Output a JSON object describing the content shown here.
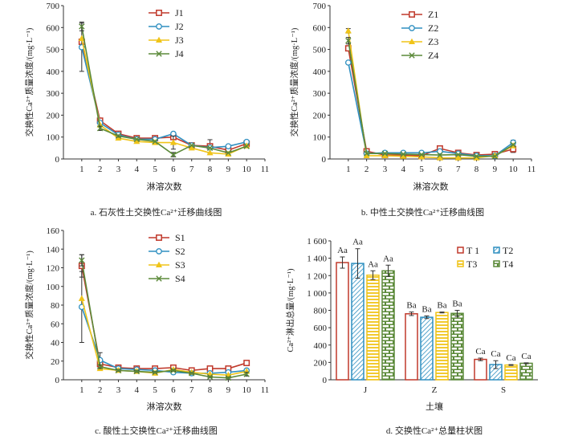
{
  "chart_data": [
    {
      "id": "a",
      "type": "line",
      "caption": "a. 石灰性土交换性Ca²⁺迁移曲线图",
      "xlabel": "淋溶次数",
      "ylabel": "交换性Ca²⁺质量浓度/(mg·L⁻¹)",
      "x": [
        1,
        2,
        3,
        4,
        5,
        6,
        7,
        8,
        9,
        10
      ],
      "xticks": [
        "1",
        "2",
        "3",
        "4",
        "5",
        "6",
        "7",
        "8",
        "9",
        "10",
        "11"
      ],
      "xlim": [
        0,
        11
      ],
      "ylim": [
        0,
        700
      ],
      "yticks": [
        "0",
        "100",
        "200",
        "300",
        "400",
        "500",
        "600",
        "700"
      ],
      "legend_position": "top-right",
      "series": [
        {
          "name": "J1",
          "color": "#c0392b",
          "marker": "square",
          "values": [
            535,
            175,
            115,
            95,
            95,
            100,
            62,
            58,
            40,
            70
          ],
          "err": [
            0,
            10,
            5,
            5,
            5,
            0,
            5,
            30,
            0,
            5
          ]
        },
        {
          "name": "J2",
          "color": "#2e8fc0",
          "marker": "circle",
          "values": [
            510,
            165,
            110,
            90,
            90,
            115,
            62,
            52,
            58,
            78
          ],
          "err": [
            110,
            5,
            5,
            5,
            5,
            5,
            5,
            5,
            5,
            5
          ]
        },
        {
          "name": "J3",
          "color": "#f0c419",
          "marker": "triangle",
          "values": [
            550,
            155,
            95,
            80,
            75,
            75,
            50,
            28,
            22,
            60
          ],
          "err": [
            0,
            0,
            5,
            0,
            0,
            30,
            0,
            0,
            0,
            0
          ]
        },
        {
          "name": "J4",
          "color": "#5c8a3a",
          "marker": "x",
          "values": [
            605,
            140,
            105,
            90,
            80,
            20,
            62,
            50,
            28,
            58
          ],
          "err": [
            20,
            10,
            5,
            0,
            0,
            10,
            0,
            0,
            0,
            0
          ]
        }
      ]
    },
    {
      "id": "b",
      "type": "line",
      "caption": "b. 中性土交换性Ca²⁺迁移曲线图",
      "xlabel": "淋溶次数",
      "ylabel": "交换性Ca²⁺质量浓度/(mg·L⁻¹)",
      "x": [
        1,
        2,
        3,
        4,
        5,
        6,
        7,
        8,
        9,
        10
      ],
      "xticks": [
        "1",
        "2",
        "3",
        "4",
        "5",
        "6",
        "7",
        "8",
        "9",
        "10",
        "11"
      ],
      "xlim": [
        0,
        11
      ],
      "ylim": [
        0,
        700
      ],
      "yticks": [
        "0",
        "100",
        "200",
        "300",
        "400",
        "500",
        "600",
        "700"
      ],
      "legend_position": "top-center",
      "series": [
        {
          "name": "Z1",
          "color": "#c0392b",
          "marker": "square",
          "values": [
            505,
            35,
            18,
            18,
            15,
            48,
            28,
            18,
            22,
            45
          ],
          "err": [
            10,
            5,
            5,
            5,
            5,
            5,
            5,
            5,
            5,
            15
          ]
        },
        {
          "name": "Z2",
          "color": "#2e8fc0",
          "marker": "circle",
          "values": [
            440,
            25,
            28,
            28,
            28,
            35,
            25,
            15,
            15,
            75
          ],
          "err": [
            5,
            5,
            5,
            5,
            5,
            5,
            5,
            5,
            5,
            10
          ]
        },
        {
          "name": "Z3",
          "color": "#f0c419",
          "marker": "triangle",
          "values": [
            585,
            15,
            15,
            12,
            10,
            5,
            5,
            5,
            15,
            60
          ],
          "err": [
            10,
            0,
            0,
            0,
            0,
            0,
            0,
            0,
            0,
            0
          ]
        },
        {
          "name": "Z4",
          "color": "#5c8a3a",
          "marker": "x",
          "values": [
            540,
            25,
            25,
            22,
            20,
            18,
            20,
            12,
            12,
            65
          ],
          "err": [
            15,
            0,
            0,
            0,
            0,
            0,
            0,
            0,
            0,
            0
          ]
        }
      ]
    },
    {
      "id": "c",
      "type": "line",
      "caption": "c. 酸性土交换性Ca²⁺迁移曲线图",
      "xlabel": "淋溶次数",
      "ylabel": "交换性Ca²⁺质量浓度/(mg·L⁻¹)",
      "x": [
        1,
        2,
        3,
        4,
        5,
        6,
        7,
        8,
        9,
        10
      ],
      "xticks": [
        "1",
        "2",
        "3",
        "4",
        "5",
        "6",
        "7",
        "8",
        "9",
        "10",
        "11"
      ],
      "xlim": [
        0,
        11
      ],
      "ylim": [
        0,
        160
      ],
      "yticks": [
        "0",
        "20",
        "40",
        "60",
        "80",
        "100",
        "120",
        "140",
        "160"
      ],
      "legend_position": "top-right",
      "series": [
        {
          "name": "S1",
          "color": "#c0392b",
          "marker": "square",
          "values": [
            122,
            17,
            13,
            12,
            12,
            13,
            10,
            12,
            12,
            18
          ],
          "err": [
            12,
            4,
            1,
            1,
            1,
            2,
            1,
            1,
            1,
            1
          ]
        },
        {
          "name": "S2",
          "color": "#2e8fc0",
          "marker": "circle",
          "values": [
            78,
            21,
            12,
            11,
            10,
            8,
            7,
            7,
            8,
            10
          ],
          "err": [
            38,
            8,
            1,
            1,
            1,
            2,
            1,
            1,
            1,
            1
          ]
        },
        {
          "name": "S3",
          "color": "#f0c419",
          "marker": "triangle",
          "values": [
            87,
            12,
            10,
            9,
            7,
            11,
            8,
            6,
            5,
            9
          ],
          "err": [
            0,
            0,
            0,
            0,
            0,
            0,
            0,
            0,
            0,
            0
          ]
        },
        {
          "name": "S4",
          "color": "#5c8a3a",
          "marker": "x",
          "values": [
            128,
            14,
            10,
            9,
            8,
            10,
            7,
            3,
            2,
            6
          ],
          "err": [
            6,
            2,
            1,
            1,
            1,
            1,
            1,
            1,
            1,
            2
          ]
        }
      ]
    },
    {
      "id": "d",
      "type": "bar",
      "caption": "d. 交换性Ca²⁺总量柱状图",
      "xlabel": "土壤",
      "ylabel": "Ca²⁺淋出总量/(mg·L⁻¹)",
      "categories": [
        "J",
        "Z",
        "S"
      ],
      "ylim": [
        0,
        1600
      ],
      "yticks": [
        "0",
        "200",
        "400",
        "600",
        "800",
        "1 000",
        "1 200",
        "1 400",
        "1 600"
      ],
      "legend_position": "top-right",
      "series": [
        {
          "name": "T 1",
          "color": "#c0392b",
          "pattern": "none",
          "values": [
            1350,
            760,
            235
          ],
          "err": [
            65,
            20,
            15
          ],
          "labels": [
            "Aa",
            "Ba",
            "Ca"
          ]
        },
        {
          "name": "T2",
          "color": "#2e8fc0",
          "pattern": "diagonal",
          "values": [
            1340,
            720,
            175
          ],
          "err": [
            170,
            15,
            45
          ],
          "labels": [
            "Aa",
            "Ba",
            "Ca"
          ]
        },
        {
          "name": "T3",
          "color": "#f0c419",
          "pattern": "horizontal",
          "values": [
            1205,
            775,
            170
          ],
          "err": [
            50,
            5,
            5
          ],
          "labels": [
            "Aa",
            "Ba",
            "Ca"
          ]
        },
        {
          "name": "T4",
          "color": "#5c8a3a",
          "pattern": "brick",
          "values": [
            1255,
            765,
            190
          ],
          "err": [
            65,
            35,
            5
          ],
          "labels": [
            "Aa",
            "Ba",
            "Ca"
          ]
        }
      ]
    }
  ]
}
